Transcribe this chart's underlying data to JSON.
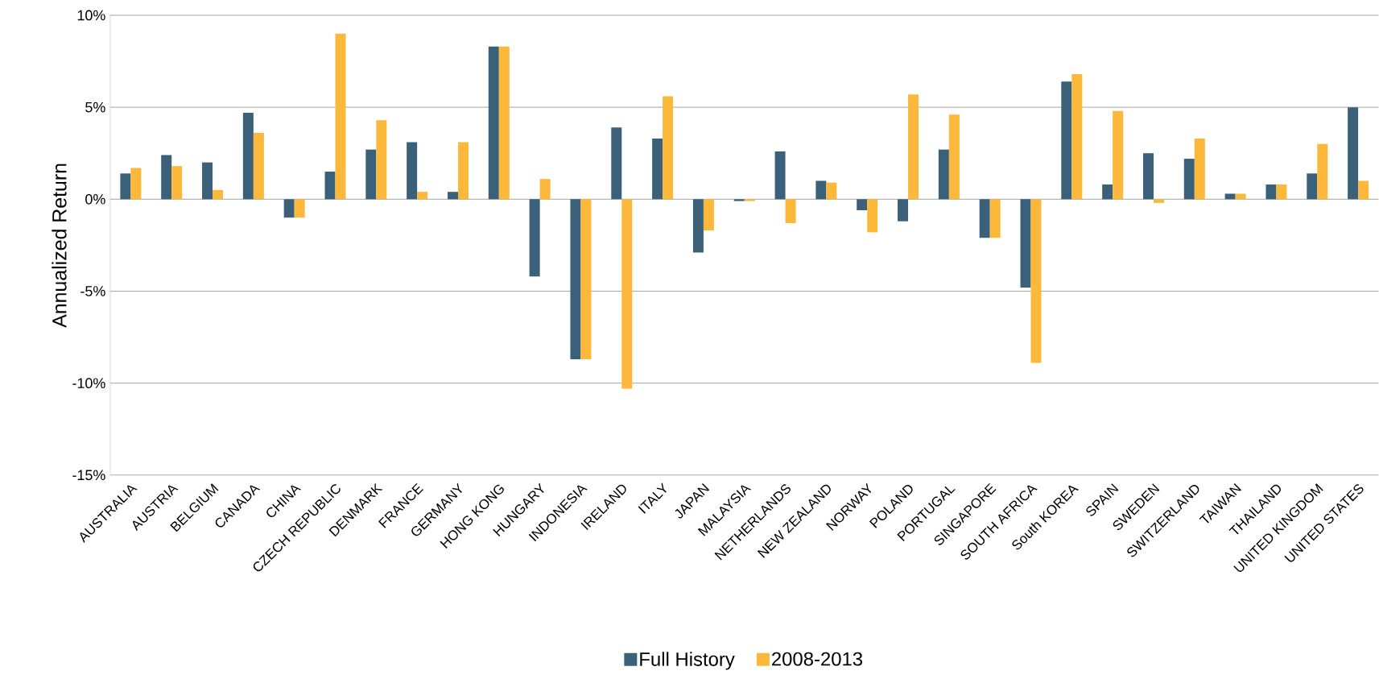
{
  "chart_data": {
    "type": "bar",
    "ylabel": "Annualized Return",
    "categories": [
      "AUSTRALIA",
      "AUSTRIA",
      "BELGIUM",
      "CANADA",
      "CHINA",
      "CZECH REPUBLIC",
      "DENMARK",
      "FRANCE",
      "GERMANY",
      "HONG KONG",
      "HUNGARY",
      "INDONESIA",
      "IRELAND",
      "ITALY",
      "JAPAN",
      "MALAYSIA",
      "NETHERLANDS",
      "NEW ZEALAND",
      "NORWAY",
      "POLAND",
      "PORTUGAL",
      "SINGAPORE",
      "SOUTH AFRICA",
      "South KOREA",
      "SPAIN",
      "SWEDEN",
      "SWITZERLAND",
      "TAIWAN",
      "THAILAND",
      "UNITED KINGDOM",
      "UNITED STATES"
    ],
    "series": [
      {
        "name": "Full History",
        "color": "#3b6079",
        "values": [
          1.4,
          2.4,
          2.0,
          4.7,
          -1.0,
          1.5,
          2.7,
          3.1,
          0.4,
          8.3,
          -4.2,
          -8.7,
          3.9,
          3.3,
          -2.9,
          -0.1,
          2.6,
          1.0,
          -0.6,
          -1.2,
          2.7,
          -2.1,
          -4.8,
          6.4,
          0.8,
          2.5,
          2.2,
          0.3,
          0.8,
          1.4,
          5.0
        ]
      },
      {
        "name": "2008-2013",
        "color": "#fcb83a",
        "values": [
          1.7,
          1.8,
          0.5,
          3.6,
          -1.0,
          9.0,
          4.3,
          0.4,
          3.1,
          8.3,
          1.1,
          -8.7,
          -10.3,
          5.6,
          -1.7,
          -0.1,
          -1.3,
          0.9,
          -1.8,
          5.7,
          4.6,
          -2.1,
          -8.9,
          6.8,
          4.8,
          -0.2,
          3.3,
          0.3,
          0.8,
          3.0,
          1.0
        ]
      }
    ],
    "ylim": [
      -15,
      10
    ],
    "yticks": [
      {
        "value": -15,
        "label": "-15%"
      },
      {
        "value": -10,
        "label": "-10%"
      },
      {
        "value": -5,
        "label": "-5%"
      },
      {
        "value": 0,
        "label": "0%"
      },
      {
        "value": 5,
        "label": "5%"
      },
      {
        "value": 10,
        "label": "10%"
      }
    ],
    "grid": "y",
    "legend": "bottom"
  }
}
